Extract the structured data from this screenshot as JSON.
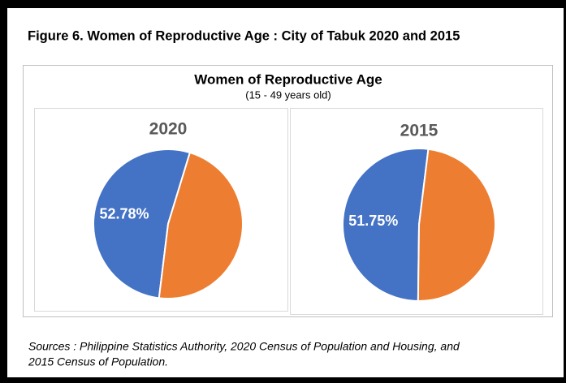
{
  "figure_title": "Figure 6. Women of Reproductive Age : City of Tabuk  2020 and 2015",
  "chart_title": "Women of Reproductive Age",
  "chart_subtitle": "(15 - 49 years old)",
  "sources": [
    "Sources : Philippine Statistics Authority, 2020 Census of Population and Housing, and",
    "2015 Census of Population."
  ],
  "chart_data": [
    {
      "type": "pie",
      "title": "2020",
      "values": [
        52.78,
        47.22
      ],
      "value_labels": [
        "52.78%",
        null
      ],
      "colors": [
        "#4472c4",
        "#ed7d31"
      ]
    },
    {
      "type": "pie",
      "title": "2015",
      "values": [
        51.75,
        48.25
      ],
      "value_labels": [
        "51.75%",
        null
      ],
      "colors": [
        "#4472c4",
        "#ed7d31"
      ]
    }
  ]
}
